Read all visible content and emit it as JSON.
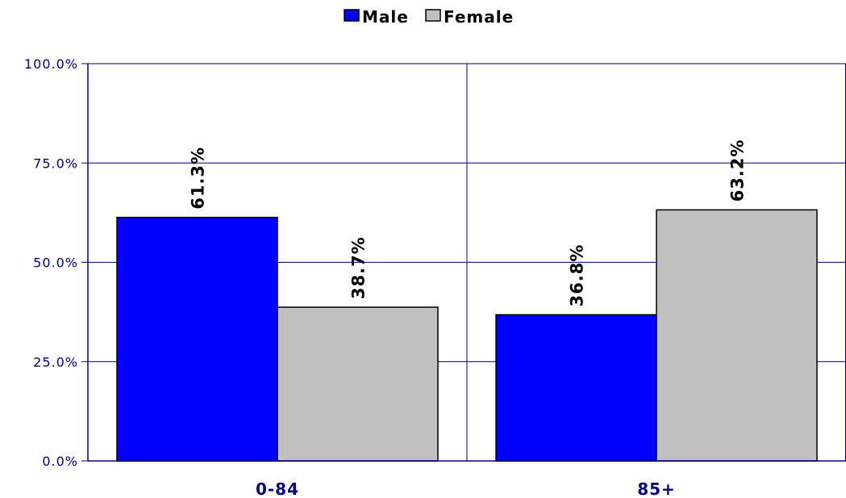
{
  "colors": {
    "male": "#0000ff",
    "female": "#c0c0c0",
    "axis": "#000080",
    "grid": "#000080",
    "bar_border": "#000000"
  },
  "chart_data": {
    "type": "bar",
    "categories": [
      "0-84",
      "85+"
    ],
    "series": [
      {
        "name": "Male",
        "values": [
          61.3,
          36.8
        ],
        "labels": [
          "61.3%",
          "36.8%"
        ]
      },
      {
        "name": "Female",
        "values": [
          38.7,
          63.2
        ],
        "labels": [
          "38.7%",
          "63.2%"
        ]
      }
    ],
    "title": "",
    "xlabel": "",
    "ylabel": "",
    "ylim": [
      0,
      100
    ],
    "yticks": [
      0,
      25,
      50,
      75,
      100
    ],
    "ytick_labels": [
      "0.0%",
      "25.0%",
      "50.0%",
      "75.0%",
      "100.0%"
    ],
    "grid": true,
    "legend": "top-center"
  }
}
